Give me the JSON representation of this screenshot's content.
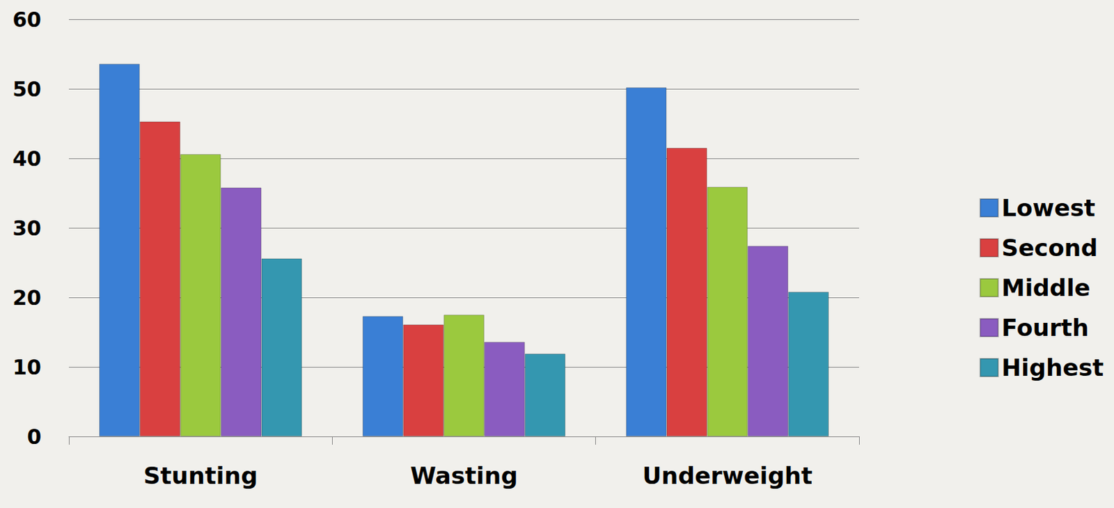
{
  "chart_data": {
    "type": "bar",
    "categories": [
      "Stunting",
      "Wasting",
      "Underweight"
    ],
    "series": [
      {
        "name": "Lowest",
        "color": "#3a7fd5",
        "values": [
          53.6,
          17.3,
          50.2
        ]
      },
      {
        "name": "Second",
        "color": "#d94040",
        "values": [
          45.3,
          16.1,
          41.5
        ]
      },
      {
        "name": "Middle",
        "color": "#9bc93e",
        "values": [
          40.6,
          17.5,
          35.9
        ]
      },
      {
        "name": "Fourth",
        "color": "#8a5cc0",
        "values": [
          35.8,
          13.6,
          27.4
        ]
      },
      {
        "name": "Highest",
        "color": "#3497b0",
        "values": [
          25.6,
          11.9,
          20.8
        ]
      }
    ],
    "ylim": [
      0,
      60
    ],
    "yticks": [
      0,
      10,
      20,
      30,
      40,
      50,
      60
    ],
    "grid": true,
    "legend": "right"
  }
}
